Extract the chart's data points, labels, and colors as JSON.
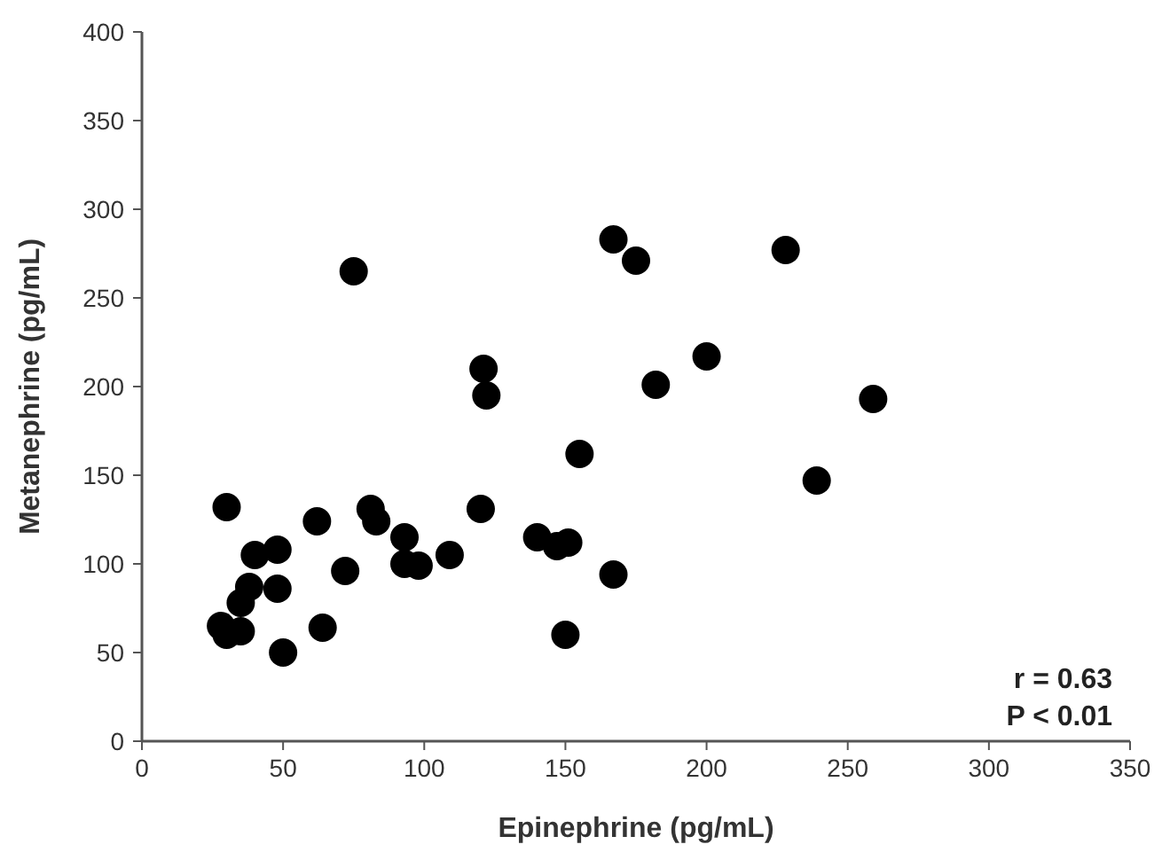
{
  "chart_data": {
    "type": "scatter",
    "xlabel": "Epinephrine (pg/mL)",
    "ylabel": "Metanephrine (pg/mL)",
    "x": [
      28,
      30,
      30,
      35,
      35,
      38,
      40,
      48,
      48,
      50,
      62,
      64,
      72,
      75,
      81,
      83,
      93,
      93,
      98,
      109,
      120,
      121,
      122,
      140,
      147,
      150,
      151,
      155,
      167,
      167,
      175,
      182,
      200,
      228,
      239,
      259
    ],
    "values": [
      65,
      60,
      132,
      62,
      78,
      87,
      105,
      108,
      86,
      50,
      124,
      64,
      96,
      265,
      131,
      124,
      115,
      100,
      99,
      105,
      131,
      210,
      195,
      115,
      110,
      60,
      112,
      162,
      283,
      94,
      271,
      201,
      217,
      277,
      147,
      193
    ],
    "color": "#000000",
    "marker": "circle",
    "xlim": [
      0,
      350
    ],
    "xticks": [
      0,
      50,
      100,
      150,
      200,
      250,
      300,
      350
    ],
    "ylim": [
      0,
      400
    ],
    "yticks": [
      0,
      50,
      100,
      150,
      200,
      250,
      300,
      350,
      400
    ],
    "annotations": [
      "r = 0.63",
      "P < 0.01"
    ],
    "grid": false
  }
}
